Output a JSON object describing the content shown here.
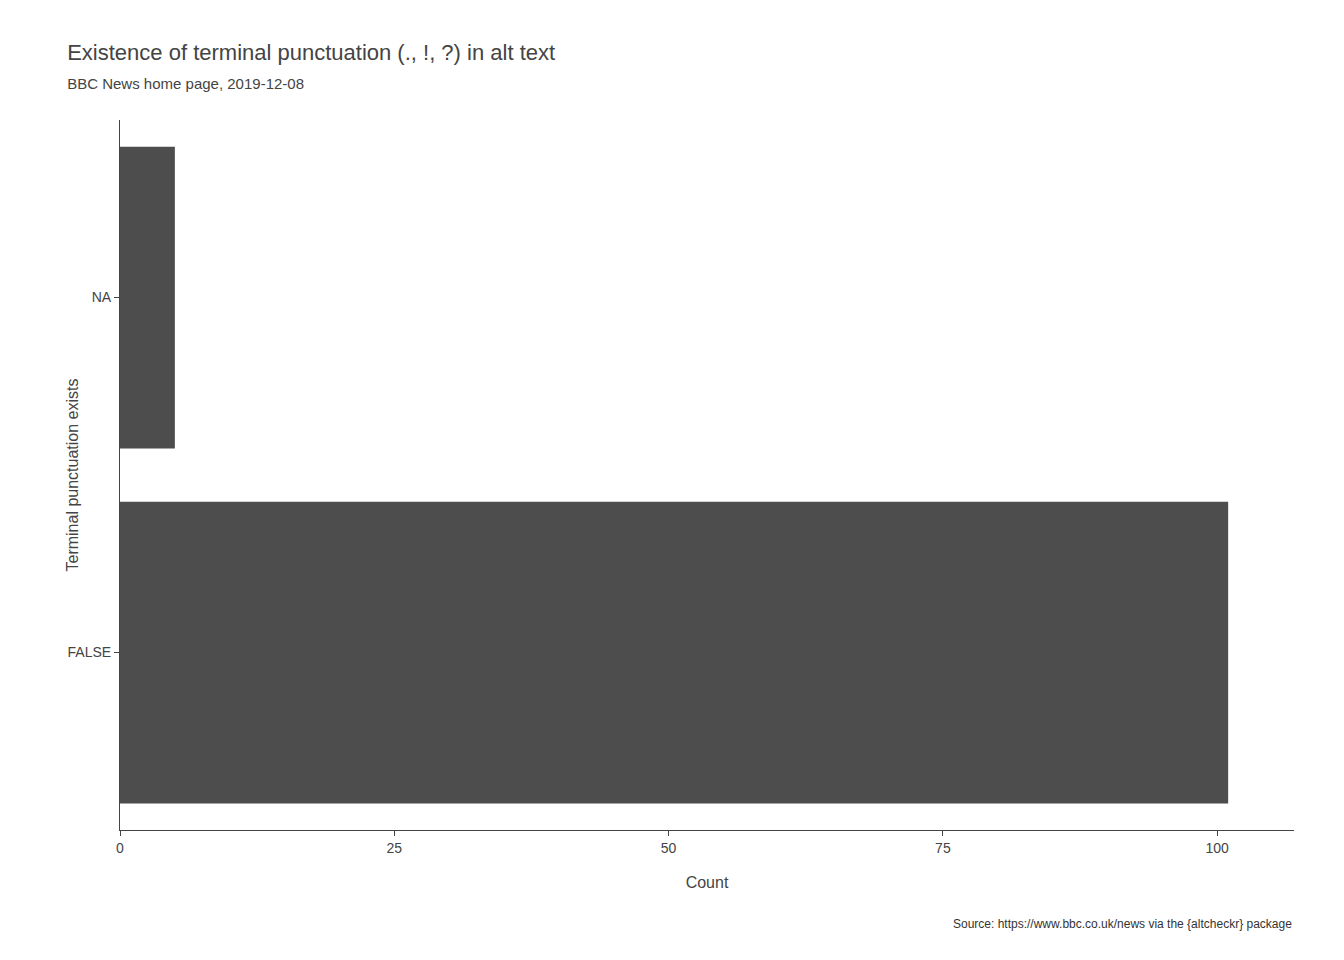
{
  "chart_data": {
    "type": "bar",
    "orientation": "horizontal",
    "title": "Existence of terminal punctuation (., !, ?) in alt text",
    "subtitle": "BBC News home page, 2019-12-08",
    "xlabel": "Count",
    "ylabel": "Terminal punctuation exists",
    "caption": "Source: https://www.bbc.co.uk/news via the {altcheckr} package",
    "categories": [
      "FALSE",
      "NA"
    ],
    "values": [
      101,
      5
    ],
    "color": "#4d4d4d",
    "xlim": [
      0,
      107
    ],
    "xticks": [
      0,
      25,
      50,
      75,
      100
    ],
    "grid": false
  }
}
